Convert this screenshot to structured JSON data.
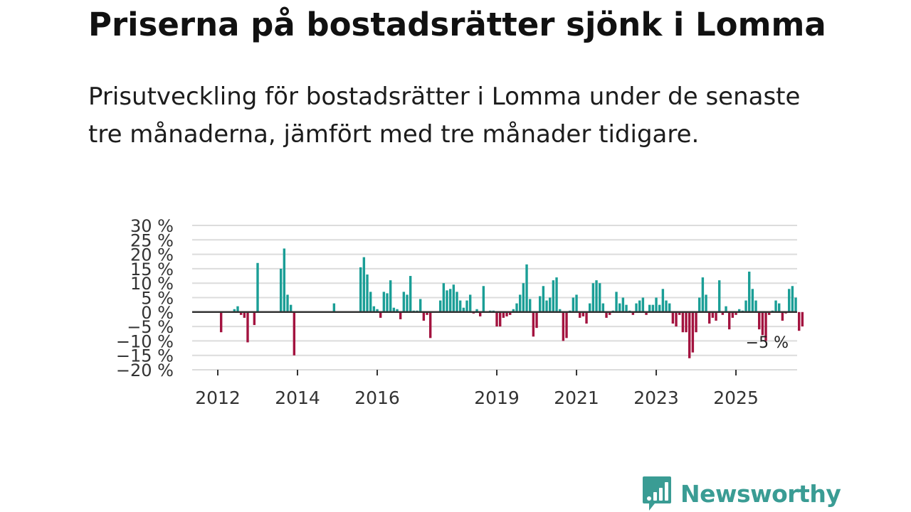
{
  "header": {
    "title": "Priserna på bostadsrätter sjönk i Lomma",
    "subtitle": "Prisutveckling för bostadsrätter i Lomma under de senaste tre månaderna, jämfört med tre månader tidigare."
  },
  "brand": {
    "name": "Newsworthy"
  },
  "colors": {
    "positive": "#1a9e96",
    "negative": "#a3133f",
    "grid": "#dcdcdc",
    "zero": "#333333",
    "brand": "#3a9c94"
  },
  "chart_data": {
    "type": "bar",
    "title": "Priserna på bostadsrätter sjönk i Lomma",
    "xlabel": "",
    "ylabel": "",
    "ylim": [
      -20,
      30
    ],
    "y_ticks": [
      30,
      25,
      20,
      15,
      10,
      5,
      0,
      -5,
      -10,
      -15,
      -20
    ],
    "y_tick_labels": [
      "30 %",
      "25 %",
      "20 %",
      "15 %",
      "10 %",
      "5 %",
      "0 %",
      "−5 %",
      "−10 %",
      "−15 %",
      "−20 %"
    ],
    "x_tick_labels": [
      "2012",
      "2014",
      "2016",
      "2019",
      "2021",
      "2023",
      "2025"
    ],
    "x_tick_index": [
      0,
      24,
      48,
      84,
      108,
      132,
      156
    ],
    "grid": true,
    "last_value_label": "−5 %",
    "start_index": 1,
    "values": [
      -7,
      null,
      null,
      null,
      1,
      2,
      -1,
      -2,
      -10.5,
      null,
      -4.5,
      17,
      null,
      null,
      null,
      null,
      null,
      null,
      15,
      22,
      6,
      2.5,
      -15,
      null,
      null,
      null,
      null,
      null,
      null,
      null,
      null,
      null,
      null,
      null,
      3,
      null,
      null,
      null,
      null,
      null,
      null,
      null,
      15.5,
      19,
      13,
      7,
      2,
      1,
      -2,
      7,
      6.5,
      11,
      1.5,
      1,
      -2.5,
      7,
      6,
      12.5,
      0.5,
      0.5,
      4.5,
      -3,
      -1,
      -9,
      null,
      null,
      4,
      10,
      7.5,
      8,
      9.5,
      7,
      4,
      1.5,
      4,
      6,
      -0.5,
      1,
      -1.5,
      9,
      null,
      0.5,
      0.5,
      -5,
      -5,
      -2,
      -1.5,
      -1,
      1,
      3,
      6,
      10,
      16.5,
      4.5,
      -8.5,
      -5.5,
      5.5,
      9,
      4,
      5,
      11,
      12,
      1,
      -10,
      -9,
      0.5,
      5,
      6,
      -2,
      -1.5,
      -4,
      3,
      10,
      11,
      10,
      3,
      -2,
      -1,
      0.5,
      7,
      3,
      5,
      2.5,
      0.5,
      -1,
      3,
      4,
      5,
      -1,
      2.5,
      2.5,
      5,
      2.5,
      8,
      4,
      3,
      -4,
      -5,
      -1,
      -7,
      -7,
      -16,
      -14,
      -7,
      5,
      12,
      6,
      -4,
      -2,
      -3,
      11,
      -1,
      2,
      -6,
      -2,
      -1,
      1,
      0.5,
      4,
      14,
      8,
      4,
      -6,
      -8,
      -10,
      -1,
      0.5,
      4,
      3,
      -3,
      -0.5,
      8,
      9,
      5,
      -6.5,
      -5
    ]
  }
}
